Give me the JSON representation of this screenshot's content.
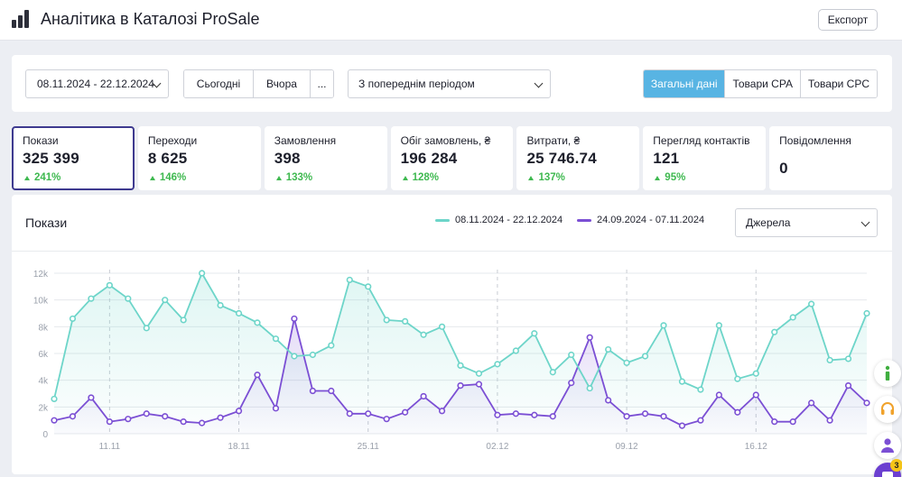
{
  "header": {
    "title": "Аналітика в Каталозі ProSale",
    "export_label": "Експорт"
  },
  "filters": {
    "date_range": "08.11.2024 - 22.12.2024",
    "quick": [
      "Сьогодні",
      "Вчора",
      "..."
    ],
    "compare": "З попереднім періодом",
    "views": [
      "Загальні дані",
      "Товари CPA",
      "Товари CPC"
    ],
    "active_view": "Загальні дані"
  },
  "kpis": [
    {
      "label": "Покази",
      "value": "325 399",
      "delta": "241%"
    },
    {
      "label": "Переходи",
      "value": "8 625",
      "delta": "146%"
    },
    {
      "label": "Замовлення",
      "value": "398",
      "delta": "133%"
    },
    {
      "label": "Обіг замовлень, ₴",
      "value": "196 284",
      "delta": "128%"
    },
    {
      "label": "Витрати, ₴",
      "value": "25 746.74",
      "delta": "137%"
    },
    {
      "label": "Перегляд контактів",
      "value": "121",
      "delta": "95%"
    },
    {
      "label": "Повідомлення",
      "value": "0",
      "delta": ""
    }
  ],
  "chart": {
    "title": "Покази",
    "source_select": "Джерела"
  },
  "colors": {
    "accent": "#58b4e3",
    "current": "#6dd5c9",
    "previous": "#7b4fd4",
    "positive": "#3fb950"
  },
  "chart_data": {
    "type": "line",
    "x_ticks": [
      "11.11",
      "18.11",
      "25.11",
      "02.12",
      "09.12",
      "16.12"
    ],
    "y_ticks": [
      "0",
      "2k",
      "4k",
      "6k",
      "8k",
      "10k",
      "12k"
    ],
    "ylim": [
      0,
      12000
    ],
    "grid": true,
    "legend_position": "top",
    "series": [
      {
        "name": "08.11.2024 - 22.12.2024",
        "values": [
          2600,
          8600,
          10100,
          11100,
          10100,
          7900,
          10000,
          8500,
          12000,
          9600,
          9000,
          8300,
          7100,
          5800,
          5900,
          6600,
          11500,
          11000,
          8500,
          8400,
          7400,
          8000,
          5100,
          4500,
          5200,
          6200,
          7500,
          4600,
          5900,
          3400,
          6300,
          5300,
          5800,
          8100,
          3900,
          3300,
          8100,
          4100,
          4500,
          7600,
          8700,
          9700,
          5500,
          5600,
          9000
        ]
      },
      {
        "name": "24.09.2024 - 07.11.2024",
        "values": [
          1000,
          1300,
          2700,
          900,
          1100,
          1500,
          1300,
          900,
          800,
          1200,
          1700,
          4400,
          1900,
          8600,
          3200,
          3200,
          1500,
          1500,
          1100,
          1600,
          2800,
          1700,
          3600,
          3700,
          1400,
          1500,
          1400,
          1300,
          3800,
          7200,
          2500,
          1300,
          1500,
          1300,
          600,
          1000,
          2900,
          1600,
          2900,
          900,
          900,
          2300,
          1000,
          3600,
          2300
        ]
      }
    ]
  },
  "float_buttons": {
    "chat_badge": "3"
  }
}
